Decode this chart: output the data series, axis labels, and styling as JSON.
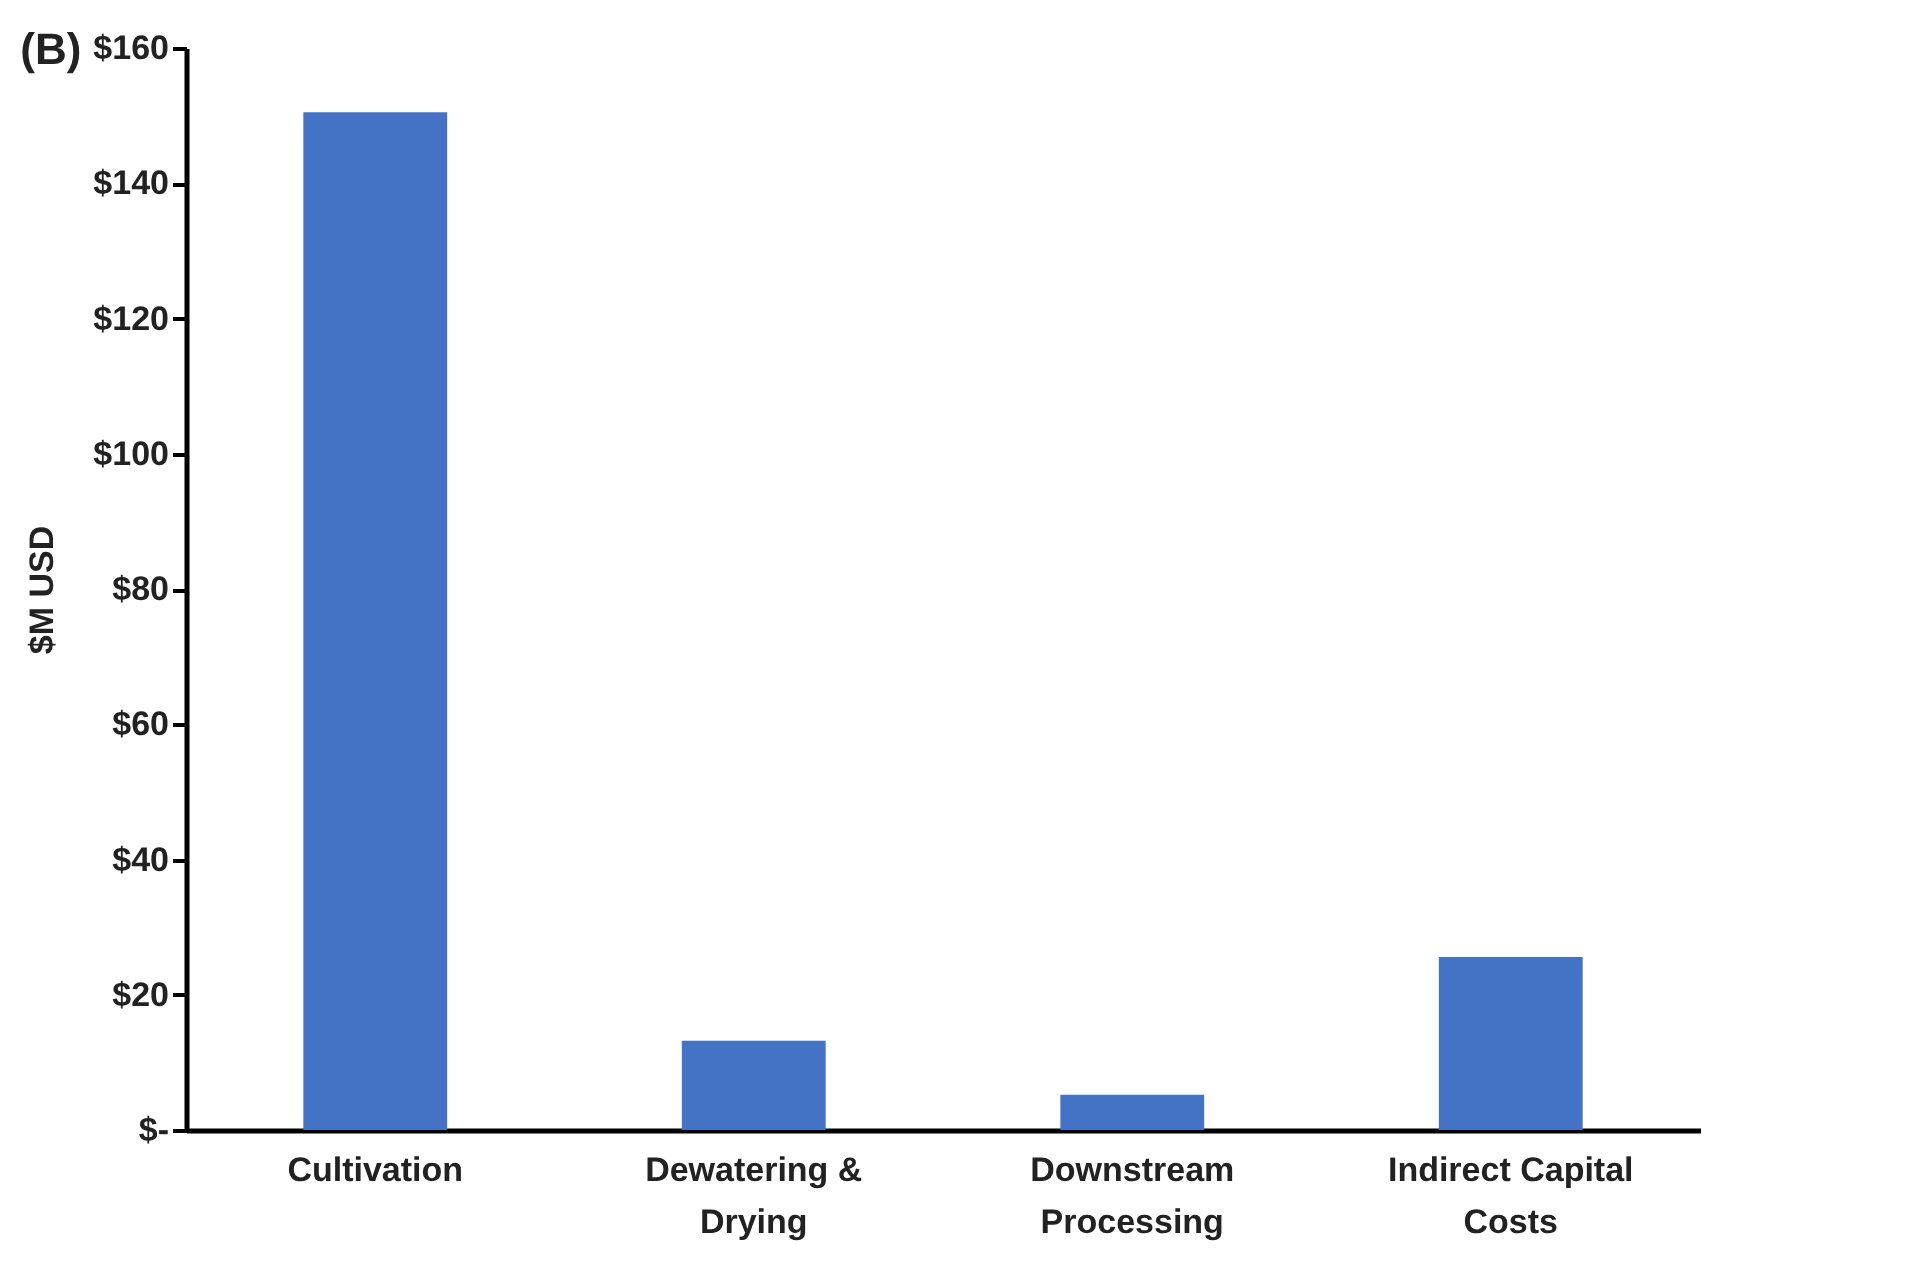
{
  "chart_data": {
    "type": "bar",
    "title": "(B)",
    "ylabel": "$M USD",
    "categories": [
      "Cultivation",
      "Dewatering & Drying",
      "Downstream Processing",
      "Indirect Capital Costs"
    ],
    "values": [
      150.5,
      13.2,
      5.2,
      25.6
    ],
    "color": "#4472c4",
    "ylim": [
      0,
      160
    ],
    "yticks": [
      {
        "value": 0,
        "label": "$-"
      },
      {
        "value": 20,
        "label": "$20"
      },
      {
        "value": 40,
        "label": "$40"
      },
      {
        "value": 60,
        "label": "$60"
      },
      {
        "value": 80,
        "label": "$80"
      },
      {
        "value": 100,
        "label": "$100"
      },
      {
        "value": 120,
        "label": "$120"
      },
      {
        "value": 140,
        "label": "$140"
      },
      {
        "value": 160,
        "label": "$160"
      }
    ],
    "grid": false
  }
}
